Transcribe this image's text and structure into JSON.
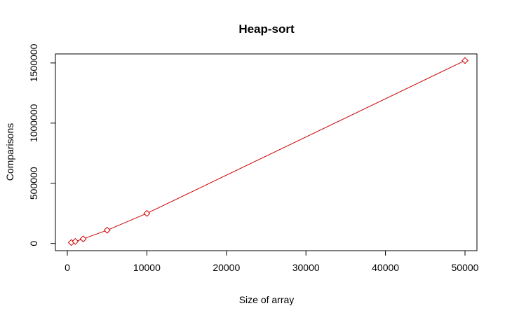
{
  "chart_data": {
    "type": "line",
    "title": "Heap-sort",
    "xlabel": "Size of array",
    "ylabel": "Comparisons",
    "xlim": [
      -1500,
      51500
    ],
    "ylim": [
      -60000,
      1575000
    ],
    "x_ticks": [
      0,
      10000,
      20000,
      30000,
      40000,
      50000
    ],
    "y_ticks": [
      0,
      500000,
      1000000,
      1500000
    ],
    "x_tick_labels": [
      "0",
      "10000",
      "20000",
      "30000",
      "40000",
      "50000"
    ],
    "y_tick_labels": [
      "0",
      "500000",
      "1000000",
      "1500000"
    ],
    "grid": false,
    "legend": "none",
    "series": [
      {
        "color": "#cc0000",
        "marker": "diamond-open",
        "x": [
          500,
          1000,
          2000,
          5000,
          10000,
          50000
        ],
        "y": [
          7600,
          17000,
          38000,
          110000,
          250000,
          1520000
        ]
      }
    ]
  }
}
